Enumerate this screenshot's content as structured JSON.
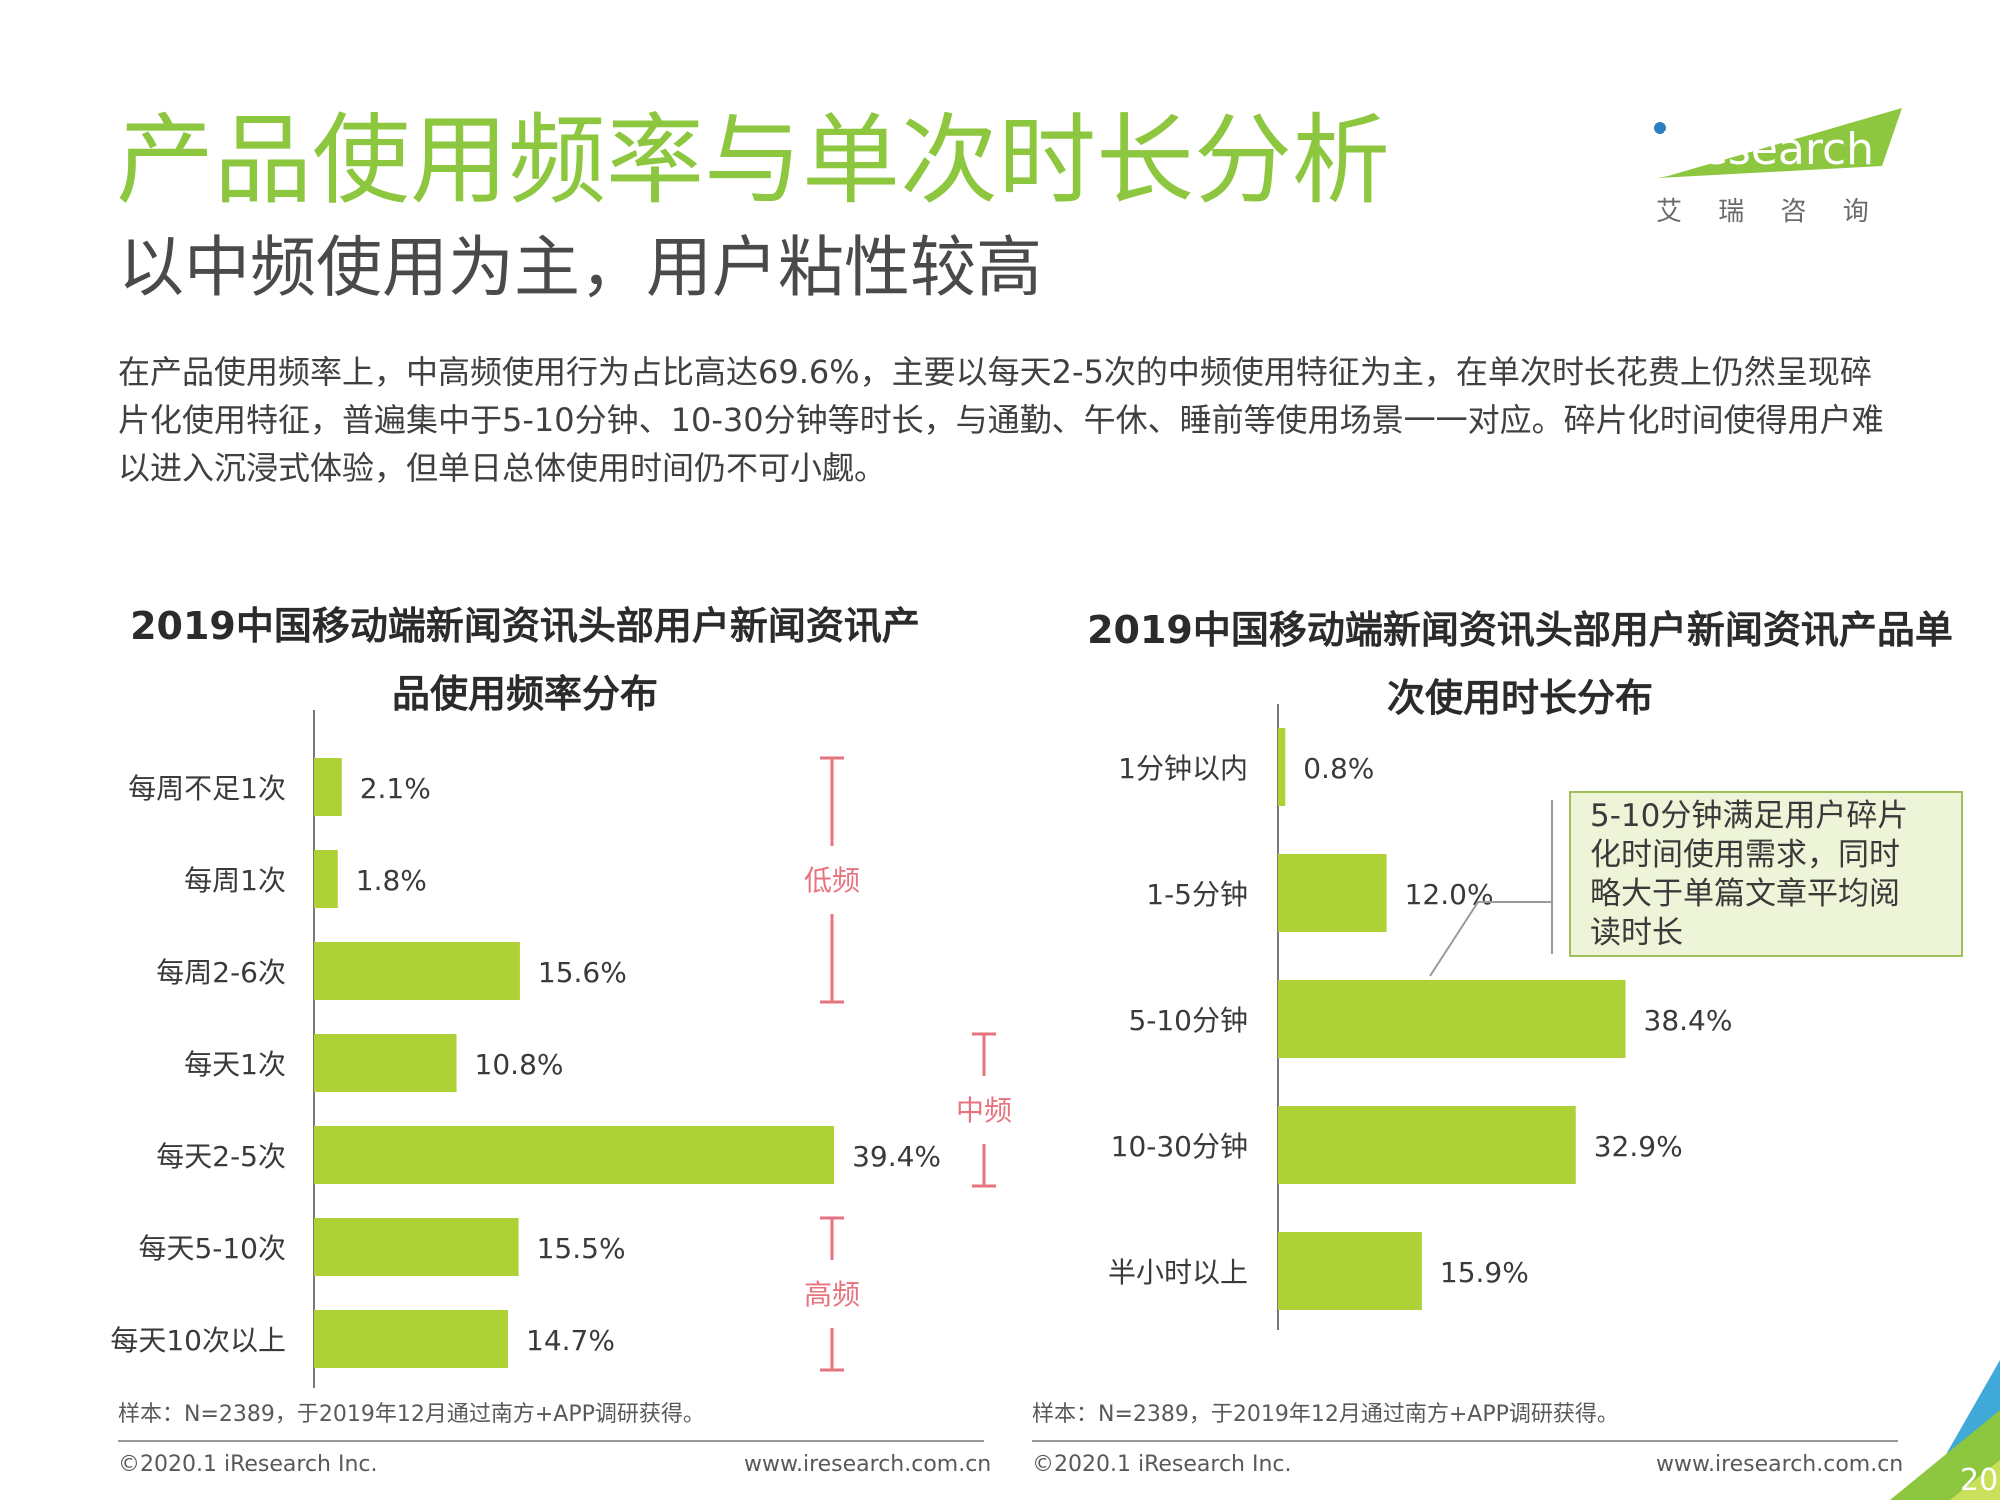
{
  "page": {
    "title": "产品使用频率与单次时长分析",
    "subtitle": "以中频使用为主，用户粘性较高",
    "description": "在产品使用频率上，中高频使用行为占比高达69.6%，主要以每天2-5次的中频使用特征为主，在单次时长花费上仍然呈现碎片化使用特征，普遍集中于5-10分钟、10-30分钟等时长，与通勤、午休、睡前等使用场景一一对应。碎片化时间使得用户难以进入沉浸式体验，但单日总体使用时间仍不可小觑。",
    "page_number": "20"
  },
  "logo": {
    "brand": "iResearch",
    "chinese": "艾 瑞 咨 询"
  },
  "colors": {
    "accent_green": "#8dc63f",
    "bar_green": "#aed136",
    "bracket_red": "#e8737e",
    "callout_bg": "#eef4d8",
    "callout_border": "#9fbf5a"
  },
  "chart_data": [
    {
      "type": "bar",
      "orientation": "horizontal",
      "title_line1": "2019中国移动端新闻资讯头部用户新闻资讯产",
      "title_line2": "品使用频率分布",
      "categories": [
        "每周不足1次",
        "每周1次",
        "每周2-6次",
        "每天1次",
        "每天2-5次",
        "每天5-10次",
        "每天10次以上"
      ],
      "values": [
        2.1,
        1.8,
        15.6,
        10.8,
        39.4,
        15.5,
        14.7
      ],
      "value_labels": [
        "2.1%",
        "1.8%",
        "15.6%",
        "10.8%",
        "39.4%",
        "15.5%",
        "14.7%"
      ],
      "unit": "%",
      "xlim": [
        0,
        40
      ],
      "brackets": [
        {
          "label": "低频",
          "from": 0,
          "to": 2
        },
        {
          "label": "中频",
          "from": 3,
          "to": 4
        },
        {
          "label": "高频",
          "from": 5,
          "to": 6
        }
      ]
    },
    {
      "type": "bar",
      "orientation": "horizontal",
      "title_line1": "2019中国移动端新闻资讯头部用户新闻资讯产品单",
      "title_line2": "次使用时长分布",
      "categories": [
        "1分钟以内",
        "1-5分钟",
        "5-10分钟",
        "10-30分钟",
        "半小时以上"
      ],
      "values": [
        0.8,
        12.0,
        38.4,
        32.9,
        15.9
      ],
      "value_labels": [
        "0.8%",
        "12.0%",
        "38.4%",
        "32.9%",
        "15.9%"
      ],
      "unit": "%",
      "xlim": [
        0,
        40
      ],
      "callout": {
        "text_lines": [
          "5-10分钟满足用户碎片",
          "化时间使用需求，同时",
          "略大于单篇文章平均阅",
          "读时长"
        ],
        "target_index": 2
      }
    }
  ],
  "footers": [
    {
      "note": "样本：N=2389，于2019年12月通过南方+APP调研获得。",
      "copyright": "©2020.1 iResearch Inc.",
      "website": "www.iresearch.com.cn"
    },
    {
      "note": "样本：N=2389，于2019年12月通过南方+APP调研获得。",
      "copyright": "©2020.1 iResearch Inc.",
      "website": "www.iresearch.com.cn"
    }
  ]
}
